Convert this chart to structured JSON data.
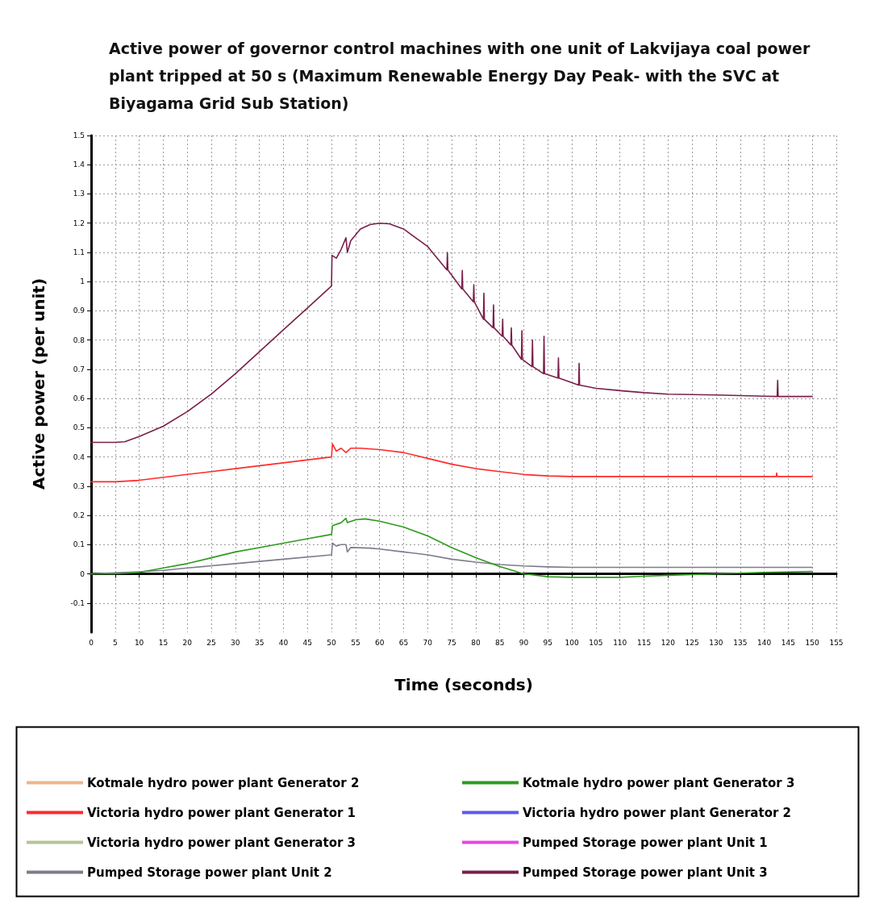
{
  "chart_data": {
    "type": "line",
    "title": "Active power of governor control machines with one unit of Lakvijaya coal power plant tripped at 50 s (Maximum Renewable Energy Day Peak- with the SVC at Biyagama Grid Sub Station)",
    "xlabel": "Time (seconds)",
    "ylabel": "Active power (per unit)",
    "xlim": [
      0,
      155
    ],
    "xticks": [
      0,
      5,
      10,
      15,
      20,
      25,
      30,
      35,
      40,
      45,
      50,
      55,
      60,
      65,
      70,
      75,
      80,
      85,
      90,
      95,
      100,
      105,
      110,
      115,
      120,
      125,
      130,
      135,
      140,
      145,
      150,
      155
    ],
    "ylim": [
      -0.2,
      1.5
    ],
    "yticks": [
      -0.1,
      0,
      0.1,
      0.2,
      0.3,
      0.4,
      0.5,
      0.6,
      0.7,
      0.8,
      0.9,
      1,
      1.1,
      1.2,
      1.3,
      1.4,
      1.5
    ],
    "grid": true,
    "legend": "bottom",
    "marker": "none",
    "line_style": "solid",
    "series": [
      {
        "name": "Kotmale hydro power plant Generator 2",
        "color": "#f0b48c"
      },
      {
        "name": "Victoria hydro power plant Generator 1",
        "color": "#ff2a2a",
        "x": [
          0,
          5,
          10,
          20,
          30,
          40,
          50,
          50.2,
          51,
          52,
          53,
          54,
          56,
          60,
          65,
          70,
          75,
          80,
          85,
          90,
          95,
          100,
          105,
          142.5,
          142.6,
          142.7,
          150
        ],
        "values": [
          0.315,
          0.315,
          0.32,
          0.34,
          0.36,
          0.38,
          0.4,
          0.445,
          0.42,
          0.43,
          0.415,
          0.43,
          0.43,
          0.425,
          0.415,
          0.395,
          0.375,
          0.36,
          0.35,
          0.34,
          0.335,
          0.333,
          0.333,
          0.333,
          0.345,
          0.333,
          0.333
        ]
      },
      {
        "name": "Victoria hydro power plant Generator 3",
        "color": "#b4c496"
      },
      {
        "name": "Pumped Storage power plant Unit 2",
        "color": "#7c7c8c",
        "x": [
          0,
          10,
          15,
          20,
          30,
          40,
          50,
          50.2,
          51,
          52,
          53,
          53.3,
          54,
          58,
          60,
          65,
          70,
          75,
          80,
          85,
          90,
          95,
          100,
          105,
          150
        ],
        "values": [
          0,
          0.007,
          0.012,
          0.02,
          0.035,
          0.05,
          0.065,
          0.105,
          0.095,
          0.1,
          0.1,
          0.075,
          0.09,
          0.088,
          0.085,
          0.075,
          0.065,
          0.05,
          0.04,
          0.032,
          0.027,
          0.024,
          0.022,
          0.022,
          0.022
        ]
      },
      {
        "name": "Kotmale hydro power plant Generator 3",
        "color": "#2e9a1e",
        "x": [
          0,
          5,
          10,
          15,
          20,
          25,
          30,
          35,
          40,
          45,
          50,
          50.2,
          52,
          53,
          53.3,
          55,
          57,
          60,
          65,
          70,
          75,
          80,
          85,
          90,
          95,
          100,
          110,
          115,
          120,
          130,
          140,
          150
        ],
        "values": [
          0,
          0,
          0.005,
          0.02,
          0.035,
          0.055,
          0.075,
          0.09,
          0.105,
          0.12,
          0.135,
          0.165,
          0.175,
          0.19,
          0.175,
          0.185,
          0.188,
          0.18,
          0.16,
          0.13,
          0.09,
          0.055,
          0.025,
          0,
          -0.01,
          -0.012,
          -0.012,
          -0.008,
          -0.005,
          0,
          0.005,
          0.008
        ]
      },
      {
        "name": "Victoria hydro power plant Generator 2",
        "color": "#5a5ae6"
      },
      {
        "name": "Pumped Storage power plant Unit 1",
        "color": "#e646e6"
      },
      {
        "name": "Pumped Storage power plant Unit 3",
        "color": "#7a1f4a",
        "x": [
          0,
          5,
          7,
          10,
          15,
          20,
          25,
          30,
          35,
          40,
          45,
          50,
          50.1,
          51,
          52,
          53,
          53.3,
          54,
          56,
          58,
          60,
          62,
          65,
          70,
          74,
          74.1,
          74.2,
          77.1,
          77.2,
          77.3,
          79.5,
          79.6,
          79.7,
          81.6,
          81.7,
          81.8,
          83.6,
          83.7,
          83.8,
          85.5,
          85.6,
          85.7,
          87.3,
          87.4,
          87.5,
          89.5,
          89.6,
          89.7,
          91.7,
          91.8,
          91.9,
          94.1,
          94.2,
          94.3,
          97.1,
          97.2,
          97.3,
          101.4,
          101.5,
          101.6,
          105,
          110,
          115,
          120,
          130,
          140,
          142.7,
          142.8,
          142.9,
          150
        ],
        "values": [
          0.45,
          0.45,
          0.452,
          0.47,
          0.505,
          0.555,
          0.615,
          0.685,
          0.76,
          0.835,
          0.91,
          0.985,
          1.09,
          1.08,
          1.11,
          1.15,
          1.1,
          1.14,
          1.18,
          1.195,
          1.2,
          1.198,
          1.18,
          1.12,
          1.04,
          1.1,
          1.04,
          0.975,
          1.038,
          0.975,
          0.931,
          0.989,
          0.931,
          0.871,
          0.96,
          0.871,
          0.842,
          0.92,
          0.842,
          0.813,
          0.871,
          0.813,
          0.783,
          0.842,
          0.783,
          0.734,
          0.832,
          0.734,
          0.709,
          0.8,
          0.709,
          0.685,
          0.813,
          0.685,
          0.67,
          0.739,
          0.67,
          0.646,
          0.72,
          0.646,
          0.635,
          0.627,
          0.62,
          0.615,
          0.612,
          0.608,
          0.607,
          0.662,
          0.607,
          0.607
        ]
      }
    ]
  }
}
